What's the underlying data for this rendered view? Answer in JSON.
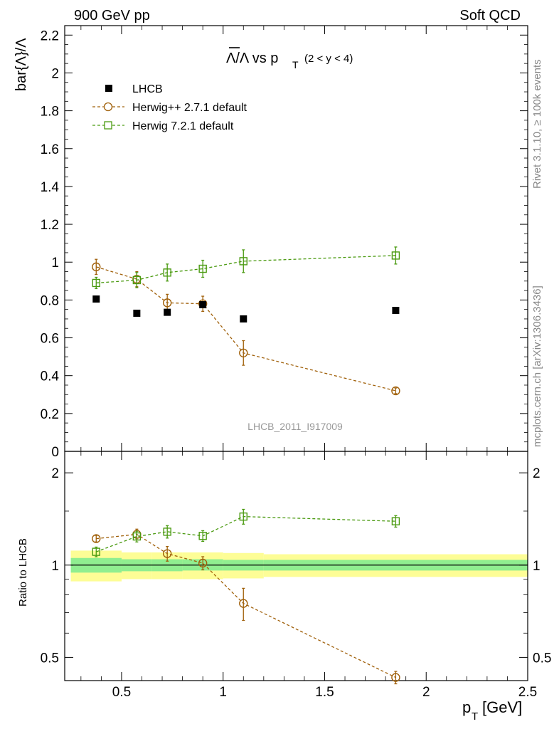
{
  "header": {
    "left": "900 GeV pp",
    "right": "Soft QCD"
  },
  "side_labels": {
    "rivet": "Rivet 3.1.10, ≥ 100k events",
    "mcplots": "mcplots.cern.ch [arXiv:1306.3436]"
  },
  "watermark": "LHCB_2011_I917009",
  "chart_data": [
    {
      "type": "scatter",
      "panel": "main",
      "title_main": "Λ/Λ vs p",
      "title_sub": "T",
      "title_range": "(2 < y < 4)",
      "xlabel": "p_T [GeV]",
      "ylabel": "bar{Λ}/Λ",
      "xlim": [
        0.22,
        2.5
      ],
      "ylim": [
        0,
        2.25
      ],
      "yticks": [
        {
          "v": 0,
          "label": "0"
        },
        {
          "v": 0.2,
          "label": "0.2"
        },
        {
          "v": 0.4,
          "label": "0.4"
        },
        {
          "v": 0.6,
          "label": "0.6"
        },
        {
          "v": 0.8,
          "label": "0.8"
        },
        {
          "v": 1.0,
          "label": "1"
        },
        {
          "v": 1.2,
          "label": "1.2"
        },
        {
          "v": 1.4,
          "label": "1.4"
        },
        {
          "v": 1.6,
          "label": "1.6"
        },
        {
          "v": 1.8,
          "label": "1.8"
        },
        {
          "v": 2.0,
          "label": "2"
        },
        {
          "v": 2.2,
          "label": "2.2"
        }
      ],
      "legend": [
        {
          "label": "LHCB",
          "marker": "square-filled",
          "color": "#000000"
        },
        {
          "label": "Herwig++ 2.7.1 default",
          "marker": "circle-open",
          "color": "#a0600a"
        },
        {
          "label": "Herwig 7.2.1 default",
          "marker": "square-open",
          "color": "#4a9a10"
        }
      ],
      "series": [
        {
          "name": "LHCB",
          "color": "#000000",
          "marker": "square-filled",
          "x": [
            0.375,
            0.575,
            0.725,
            0.9,
            1.1,
            1.85
          ],
          "y": [
            0.805,
            0.73,
            0.735,
            0.775,
            0.7,
            0.745
          ],
          "yerr": [
            0.01,
            0.01,
            0.01,
            0.01,
            0.01,
            0.01
          ]
        },
        {
          "name": "Herwig++ 2.7.1 default",
          "color": "#a0600a",
          "marker": "circle-open",
          "x": [
            0.375,
            0.575,
            0.725,
            0.9,
            1.1,
            1.85
          ],
          "y": [
            0.975,
            0.91,
            0.785,
            0.78,
            0.52,
            0.32
          ],
          "yerr": [
            0.04,
            0.04,
            0.045,
            0.04,
            0.065,
            0.015
          ]
        },
        {
          "name": "Herwig 7.2.1 default",
          "color": "#4a9a10",
          "marker": "square-open",
          "x": [
            0.375,
            0.575,
            0.725,
            0.9,
            1.1,
            1.85
          ],
          "y": [
            0.89,
            0.905,
            0.945,
            0.965,
            1.005,
            1.035
          ],
          "yerr": [
            0.03,
            0.04,
            0.045,
            0.045,
            0.06,
            0.045
          ]
        }
      ]
    },
    {
      "type": "scatter",
      "panel": "ratio",
      "ylabel": "Ratio to LHCB",
      "xlabel": "p_T [GeV]",
      "xlim": [
        0.22,
        2.5
      ],
      "ylim": [
        0.42,
        2.35
      ],
      "yscale": "log",
      "xticks": [
        {
          "v": 0.5,
          "label": "0.5"
        },
        {
          "v": 1.0,
          "label": "1"
        },
        {
          "v": 1.5,
          "label": "1.5"
        },
        {
          "v": 2.0,
          "label": "2"
        },
        {
          "v": 2.5,
          "label": "2.5"
        }
      ],
      "yticks_major": [
        {
          "v": 0.5,
          "label": "0.5"
        },
        {
          "v": 1.0,
          "label": "1"
        },
        {
          "v": 2.0,
          "label": "2"
        }
      ],
      "yticks_minor": [
        0.6,
        0.7,
        0.8,
        0.9,
        1.5,
        3
      ],
      "band_bins": [
        {
          "x0": 0.25,
          "x1": 0.5,
          "inner": [
            0.945,
            1.055
          ],
          "outer": [
            0.885,
            1.115
          ]
        },
        {
          "x0": 0.5,
          "x1": 0.65,
          "inner": [
            0.955,
            1.045
          ],
          "outer": [
            0.9,
            1.1
          ]
        },
        {
          "x0": 0.65,
          "x1": 0.8,
          "inner": [
            0.955,
            1.045
          ],
          "outer": [
            0.9,
            1.1
          ]
        },
        {
          "x0": 0.8,
          "x1": 1.0,
          "inner": [
            0.96,
            1.045
          ],
          "outer": [
            0.9,
            1.1
          ]
        },
        {
          "x0": 1.0,
          "x1": 1.2,
          "inner": [
            0.96,
            1.04
          ],
          "outer": [
            0.905,
            1.095
          ]
        },
        {
          "x0": 1.2,
          "x1": 2.5,
          "inner": [
            0.96,
            1.04
          ],
          "outer": [
            0.915,
            1.085
          ]
        }
      ],
      "band_colors": {
        "inner": "#90ee90",
        "outer": "#fdfd96"
      },
      "series": [
        {
          "name": "Herwig++ 2.7.1 default",
          "color": "#a0600a",
          "marker": "circle-open",
          "x": [
            0.375,
            0.575,
            0.725,
            0.9,
            1.1,
            1.85
          ],
          "y": [
            1.22,
            1.26,
            1.09,
            1.015,
            0.75,
            0.43
          ],
          "yerr": [
            0.03,
            0.05,
            0.06,
            0.05,
            0.09,
            0.02
          ]
        },
        {
          "name": "Herwig 7.2.1 default",
          "color": "#4a9a10",
          "marker": "square-open",
          "x": [
            0.375,
            0.575,
            0.725,
            0.9,
            1.1,
            1.85
          ],
          "y": [
            1.105,
            1.24,
            1.285,
            1.245,
            1.44,
            1.39
          ],
          "yerr": [
            0.04,
            0.05,
            0.06,
            0.05,
            0.08,
            0.06
          ]
        }
      ]
    }
  ]
}
